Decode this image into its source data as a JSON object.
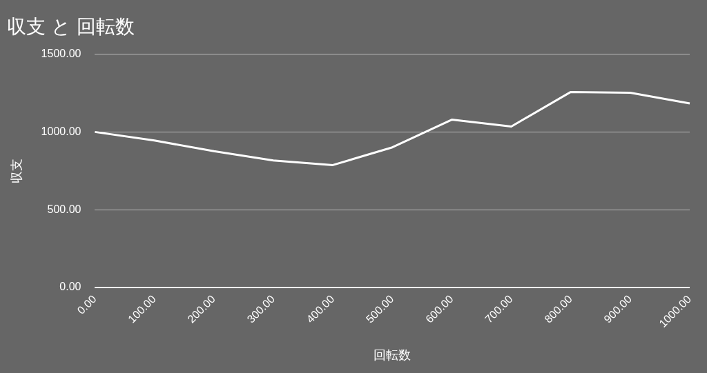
{
  "chart_data": {
    "type": "line",
    "title": "収支 と 回転数",
    "xlabel": "回転数",
    "ylabel": "収支",
    "categories": [
      "0.00",
      "100.00",
      "200.00",
      "300.00",
      "400.00",
      "500.00",
      "600.00",
      "700.00",
      "800.00",
      "900.00",
      "1000.00"
    ],
    "series": [
      {
        "color": "#ffffff",
        "values": [
          1000,
          945,
          876,
          817,
          787,
          901,
          1079,
          1035,
          1257,
          1252,
          1183
        ]
      }
    ],
    "ylim": [
      0,
      1500
    ],
    "yticks": [
      {
        "value": 0,
        "label": "0.00"
      },
      {
        "value": 500,
        "label": "500.00"
      },
      {
        "value": 1000,
        "label": "1000.00"
      },
      {
        "value": 1500,
        "label": "1500.00"
      }
    ],
    "grid": "y",
    "legend": false,
    "marker": "none",
    "line_style": "solid"
  }
}
